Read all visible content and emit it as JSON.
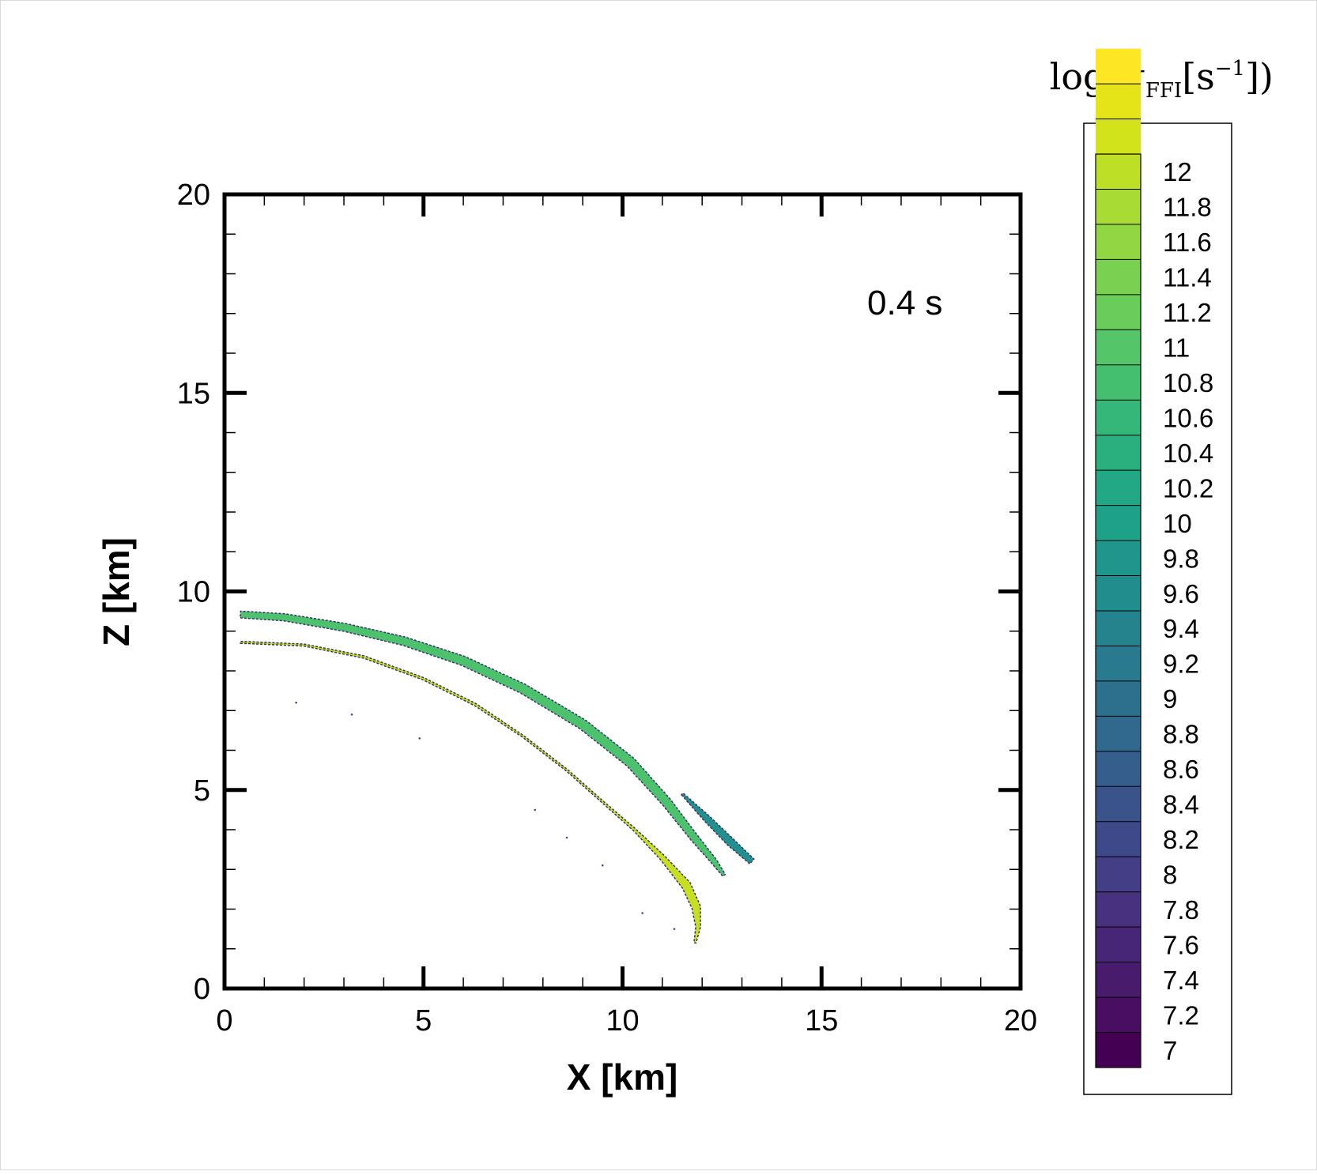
{
  "chart_data": {
    "type": "contour",
    "annotation": "0.4 s",
    "xlabel": "X [km]",
    "ylabel": "Z [km]",
    "xlim": [
      0,
      20
    ],
    "ylim": [
      0,
      20
    ],
    "x_major_ticks": [
      0,
      5,
      10,
      15,
      20
    ],
    "y_major_ticks": [
      0,
      5,
      10,
      15,
      20
    ],
    "x_tick_labels": [
      "0",
      "5",
      "10",
      "15",
      "20"
    ],
    "y_tick_labels": [
      "0",
      "5",
      "10",
      "15",
      "20"
    ],
    "minor_tick_step": 1,
    "grid": false,
    "colorbar": {
      "title_main": "log(σ",
      "title_sub": "FFI",
      "title_unit": "[s",
      "title_sup": "−1",
      "title_end": "])",
      "placement": "right",
      "min": 6.9,
      "max": 12.1,
      "step": 0.2,
      "labels": [
        "12",
        "11.8",
        "11.6",
        "11.4",
        "11.2",
        "11",
        "10.8",
        "10.6",
        "10.4",
        "10.2",
        "10",
        "9.8",
        "9.6",
        "9.4",
        "9.2",
        "9",
        "8.8",
        "8.6",
        "8.4",
        "8.2",
        "8",
        "7.8",
        "7.6",
        "7.4",
        "7.2",
        "7"
      ],
      "label_values": [
        12,
        11.8,
        11.6,
        11.4,
        11.2,
        11,
        10.8,
        10.6,
        10.4,
        10.2,
        10,
        9.8,
        9.6,
        9.4,
        9.2,
        9,
        8.8,
        8.6,
        8.4,
        8.2,
        8,
        7.8,
        7.6,
        7.4,
        7.2,
        7
      ],
      "colors": [
        "#440154",
        "#470e61",
        "#481b6d",
        "#482677",
        "#46327e",
        "#433e85",
        "#3e4989",
        "#3a538b",
        "#355e8d",
        "#31688e",
        "#2d708e",
        "#297a8e",
        "#25838e",
        "#228d8d",
        "#1f968b",
        "#1fa088",
        "#22a884",
        "#2ab07f",
        "#35b779",
        "#44bf70",
        "#54c568",
        "#69cd5b",
        "#7ad151",
        "#90d743",
        "#a8db34",
        "#bddf26",
        "#d2e21b",
        "#e5e419",
        "#fde725"
      ]
    },
    "series": [
      {
        "value": 10.6,
        "color": "#4cc26c",
        "points": [
          [
            0.4,
            9.42
          ],
          [
            1.5,
            9.35
          ],
          [
            3,
            9.1
          ],
          [
            4.5,
            8.75
          ],
          [
            6,
            8.25
          ],
          [
            7.5,
            7.55
          ],
          [
            9,
            6.65
          ],
          [
            10.2,
            5.7
          ],
          [
            11.1,
            4.7
          ],
          [
            11.8,
            3.8
          ],
          [
            12.3,
            3.2
          ],
          [
            12.55,
            2.85
          ]
        ],
        "widths": [
          0.17,
          0.18,
          0.2,
          0.22,
          0.24,
          0.25,
          0.26,
          0.26,
          0.24,
          0.2,
          0.15,
          0.08
        ]
      },
      {
        "value": 9.5,
        "color": "#22908c",
        "points": [
          [
            11.5,
            4.9
          ],
          [
            12.1,
            4.3
          ],
          [
            12.7,
            3.7
          ],
          [
            13.25,
            3.2
          ]
        ],
        "widths": [
          0.06,
          0.17,
          0.21,
          0.16
        ]
      },
      {
        "value": 11.3,
        "color": "#c6df22",
        "points": [
          [
            0.4,
            8.72
          ],
          [
            2,
            8.65
          ],
          [
            3.5,
            8.35
          ],
          [
            5,
            7.8
          ],
          [
            6.3,
            7.15
          ],
          [
            7.5,
            6.35
          ],
          [
            8.6,
            5.5
          ],
          [
            9.5,
            4.7
          ],
          [
            10.3,
            4.0
          ],
          [
            11.0,
            3.3
          ],
          [
            11.6,
            2.6
          ],
          [
            11.85,
            2.05
          ],
          [
            11.9,
            1.55
          ],
          [
            11.82,
            1.15
          ]
        ],
        "widths": [
          0.05,
          0.05,
          0.06,
          0.06,
          0.06,
          0.05,
          0.05,
          0.05,
          0.07,
          0.14,
          0.24,
          0.22,
          0.12,
          0.05
        ]
      }
    ],
    "speckles": [
      [
        1.8,
        7.2
      ],
      [
        3.2,
        6.9
      ],
      [
        4.9,
        6.3
      ],
      [
        7.8,
        4.5
      ],
      [
        8.6,
        3.8
      ],
      [
        9.5,
        3.1
      ],
      [
        10.5,
        1.9
      ],
      [
        11.3,
        1.5
      ]
    ]
  }
}
